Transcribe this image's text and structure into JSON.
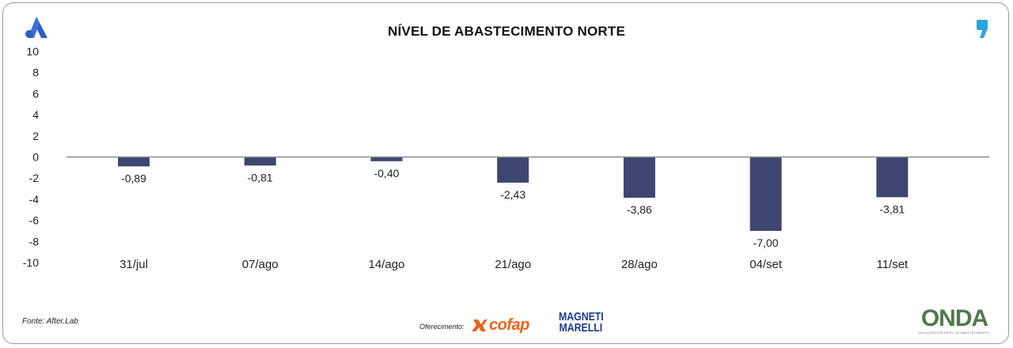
{
  "chart_data": {
    "type": "bar",
    "title": "NÍVEL DE ABASTECIMENTO NORTE",
    "categories": [
      "31/jul",
      "07/ago",
      "14/ago",
      "21/ago",
      "28/ago",
      "04/set",
      "11/set"
    ],
    "values": [
      -0.89,
      -0.81,
      -0.4,
      -2.43,
      -3.86,
      -7.0,
      -3.81
    ],
    "data_labels": [
      "-0,89",
      "-0,81",
      "-0,40",
      "-2,43",
      "-3,86",
      "-7,00",
      "-3,81"
    ],
    "y_ticks": [
      10,
      8,
      6,
      4,
      2,
      0,
      -2,
      -4,
      -6,
      -8,
      -10
    ],
    "ylim": [
      -10,
      10
    ],
    "bar_color": "#3f4770",
    "axis_color": "#8a8a8a",
    "grid": false,
    "legend": "none"
  },
  "footer": {
    "source": "Fonte: After.Lab",
    "sponsor_label": "Oferecimento:",
    "sponsor_1": "cofap",
    "sponsor_2_line1": "MAGNETI",
    "sponsor_2_line2": "MARELLI",
    "brand": "ONDA",
    "brand_tagline": "SOLUÇÕES EM NÍVEL DE ABASTECIMENTO E PREÇO"
  },
  "icons": {
    "left_logo": "brand-a-logo-icon",
    "right_logo": "comma-quote-logo-icon",
    "cofap_mark": "cofap-x-mark-icon"
  },
  "colors": {
    "brand_blue": "#2f5fc4",
    "right_logo": "#2aa7d8",
    "cofap_orange": "#e8641c",
    "magneti_blue": "#1a3a8c",
    "onda_green": "#4f7a4a"
  }
}
